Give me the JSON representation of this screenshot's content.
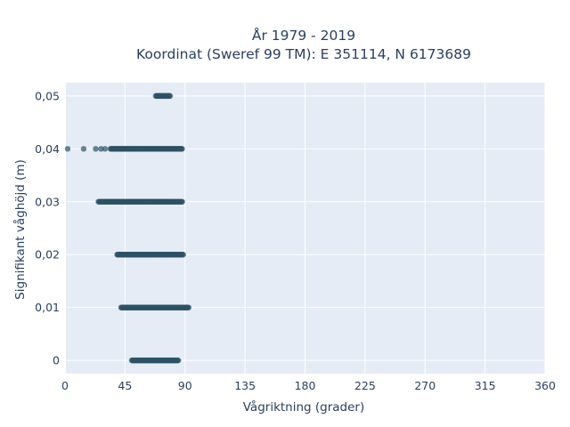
{
  "chart_data": {
    "type": "scatter",
    "title": "År 1979 - 2019",
    "subtitle": "Koordinat (Sweref 99 TM): E 351114, N 6173689",
    "xlabel": "Vågriktning (grader)",
    "ylabel": "Signifikant våghöjd (m)",
    "xlim": [
      0,
      360
    ],
    "ylim": [
      -0.0025,
      0.0525
    ],
    "xticks": [
      0,
      45,
      90,
      135,
      180,
      225,
      270,
      315,
      360
    ],
    "xtick_labels": [
      "0",
      "45",
      "90",
      "135",
      "180",
      "225",
      "270",
      "315",
      "360"
    ],
    "yticks": [
      0,
      0.01,
      0.02,
      0.03,
      0.04,
      0.05
    ],
    "ytick_labels": [
      "0",
      "0,01",
      "0,02",
      "0,03",
      "0,04",
      "0,05"
    ],
    "grid": true,
    "background": "#e5ecf6",
    "marker_color": "#2e5266",
    "series": [
      {
        "clusters": [
          {
            "y": 0.05,
            "x_from": 68,
            "x_to": 79,
            "isolated_x": []
          },
          {
            "y": 0.04,
            "x_from": 34,
            "x_to": 88,
            "isolated_x": [
              2,
              14,
              23,
              27,
              30
            ]
          },
          {
            "y": 0.03,
            "x_from": 25,
            "x_to": 88,
            "isolated_x": []
          },
          {
            "y": 0.02,
            "x_from": 39,
            "x_to": 89,
            "isolated_x": []
          },
          {
            "y": 0.01,
            "x_from": 42,
            "x_to": 93,
            "isolated_x": []
          },
          {
            "y": 0,
            "x_from": 50,
            "x_to": 85,
            "isolated_x": []
          }
        ]
      }
    ]
  }
}
